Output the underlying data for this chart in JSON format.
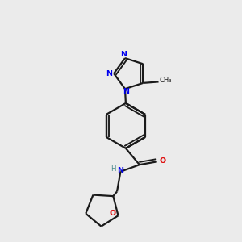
{
  "bg_color": "#ebebeb",
  "bond_color": "#1a1a1a",
  "N_color": "#0000ee",
  "O_color": "#dd0000",
  "line_width": 1.6,
  "figsize": [
    3.0,
    3.0
  ],
  "dpi": 100,
  "xlim": [
    0,
    10
  ],
  "ylim": [
    0,
    10
  ]
}
